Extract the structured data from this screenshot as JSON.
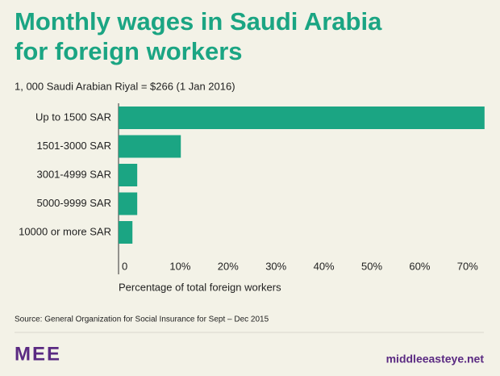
{
  "chart_data": {
    "type": "bar",
    "orientation": "horizontal",
    "title": "Monthly wages in Saudi Arabia for foreign workers",
    "subtitle": "1, 000 Saudi Arabian Riyal = $266 (1 Jan 2016)",
    "categories": [
      "Up to 1500 SAR",
      "1501-3000 SAR",
      "3001-4999 SAR",
      "5000-9999 SAR",
      "10000 or more SAR"
    ],
    "values": [
      76.4,
      13.0,
      3.9,
      3.9,
      2.9
    ],
    "color": "#1ba583",
    "xlim": [
      0,
      77
    ],
    "xticks": [
      0,
      {
        "value": 10,
        "label": "10%"
      },
      {
        "value": 20,
        "label": "20%"
      },
      {
        "value": 30,
        "label": "30%"
      },
      {
        "value": 40,
        "label": "40%"
      },
      {
        "value": 50,
        "label": "50%"
      },
      {
        "value": 60,
        "label": "60%"
      },
      {
        "value": 70,
        "label": "70%"
      }
    ],
    "xlabel": "Percentage of total foreign workers",
    "grid": false,
    "source": "Source: General Organization for Social Insurance for Sept – Dec 2015"
  },
  "footer": {
    "logo": "MEE",
    "site": "middleeasteye.net"
  }
}
